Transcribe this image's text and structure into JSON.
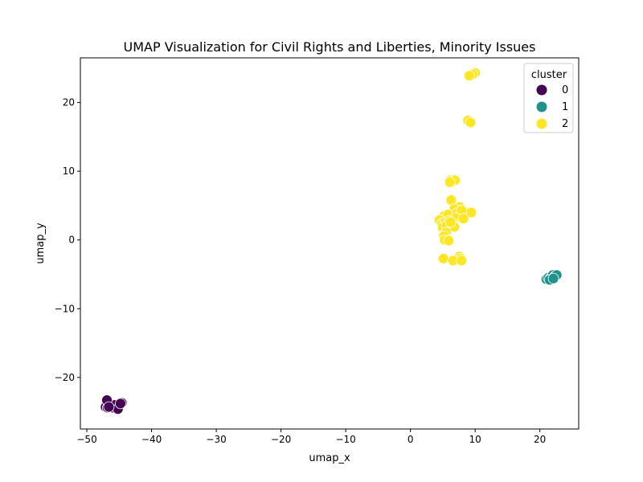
{
  "chart_data": {
    "type": "scatter",
    "title": "UMAP Visualization for Civil Rights and Liberties, Minority Issues",
    "xlabel": "umap_x",
    "ylabel": "umap_y",
    "xlim": [
      -51,
      26
    ],
    "ylim": [
      -27.5,
      26.5
    ],
    "x_ticks": [
      -50,
      -40,
      -30,
      -20,
      -10,
      0,
      10,
      20
    ],
    "y_ticks": [
      -20,
      -10,
      0,
      10,
      20
    ],
    "x_tick_labels": [
      "−50",
      "−40",
      "−30",
      "−20",
      "−10",
      "0",
      "10",
      "20"
    ],
    "y_tick_labels": [
      "−20",
      "−10",
      "0",
      "10",
      "20"
    ],
    "grid": false,
    "legend": {
      "title": "cluster",
      "placement": "top-right",
      "entries": [
        "0",
        "1",
        "2"
      ]
    },
    "series": [
      {
        "name": "0",
        "color": "#440154",
        "points": [
          [
            -47.1,
            -24.3
          ],
          [
            -46.8,
            -24.4
          ],
          [
            -46.3,
            -24.1
          ],
          [
            -46.0,
            -24.4
          ],
          [
            -45.7,
            -24.0
          ],
          [
            -45.2,
            -24.6
          ],
          [
            -44.6,
            -23.7
          ],
          [
            -46.9,
            -23.3
          ],
          [
            -46.6,
            -24.3
          ],
          [
            -44.8,
            -23.8
          ]
        ]
      },
      {
        "name": "1",
        "color": "#21918c",
        "points": [
          [
            21.0,
            -5.7
          ],
          [
            21.3,
            -5.5
          ],
          [
            21.6,
            -5.6
          ],
          [
            21.9,
            -5.4
          ],
          [
            22.0,
            -5.1
          ],
          [
            22.3,
            -5.3
          ],
          [
            22.6,
            -5.1
          ],
          [
            21.5,
            -5.8
          ],
          [
            22.1,
            -5.6
          ]
        ]
      },
      {
        "name": "2",
        "color": "#fde725",
        "points": [
          [
            10.0,
            24.3
          ],
          [
            9.6,
            24.1
          ],
          [
            9.1,
            23.9
          ],
          [
            8.9,
            17.4
          ],
          [
            9.3,
            17.1
          ],
          [
            6.2,
            8.7
          ],
          [
            6.9,
            8.7
          ],
          [
            6.1,
            8.4
          ],
          [
            6.3,
            5.8
          ],
          [
            7.6,
            4.8
          ],
          [
            6.8,
            4.5
          ],
          [
            8.6,
            4.0
          ],
          [
            9.4,
            4.0
          ],
          [
            5.2,
            3.5
          ],
          [
            5.8,
            3.7
          ],
          [
            7.2,
            3.9
          ],
          [
            7.9,
            4.3
          ],
          [
            4.5,
            2.9
          ],
          [
            7.0,
            3.2
          ],
          [
            8.2,
            3.1
          ],
          [
            4.9,
            2.4
          ],
          [
            5.4,
            2.6
          ],
          [
            6.0,
            2.8
          ],
          [
            6.6,
            2.3
          ],
          [
            5.0,
            1.8
          ],
          [
            5.6,
            2.1
          ],
          [
            6.8,
            1.9
          ],
          [
            5.5,
            1.1
          ],
          [
            5.2,
            0.6
          ],
          [
            5.3,
            0.0
          ],
          [
            5.9,
            -0.1
          ],
          [
            7.6,
            -2.4
          ],
          [
            7.8,
            -2.7
          ],
          [
            5.1,
            -2.7
          ],
          [
            6.6,
            -3.0
          ],
          [
            7.9,
            -3.0
          ],
          [
            6.2,
            2.6
          ]
        ]
      }
    ]
  }
}
